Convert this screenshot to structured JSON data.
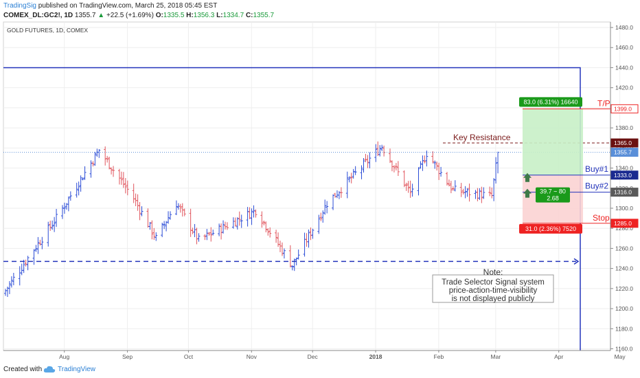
{
  "header": {
    "brand": "TradingSig",
    "published": " published on TradingView.com, March 25, 2018 05:45 EST",
    "symbol": "COMEX_DL:GC2!, 1D",
    "last": "1355.7",
    "change": "+22.5 (+1.69%)",
    "open_label": "O:",
    "open": "1335.5",
    "high_label": "H:",
    "high": "1356.3",
    "low_label": "L:",
    "low": "1334.7",
    "close_label": "C:",
    "close": "1355.7"
  },
  "footer": {
    "created_with": "Created with",
    "brand": "TradingView"
  },
  "colors": {
    "up": "#2a4bd6",
    "down": "#e0545c",
    "blue_line": "#2233bb",
    "target": "#1a9a1a",
    "stop": "#ee2222",
    "resistance": "#7a1a1a",
    "current": "#5a8fd8"
  },
  "chart_data": {
    "type": "ohlc",
    "title": "GOLD FUTURES, 1D, COMEX",
    "y_axis_ticks": [
      "1480.0",
      "1460.0",
      "1440.0",
      "1420.0",
      "1400.0",
      "1380.0",
      "1360.0",
      "1340.0",
      "1320.0",
      "1300.0",
      "1280.0",
      "1260.0",
      "1240.0",
      "1220.0",
      "1200.0",
      "1180.0",
      "1160.0"
    ],
    "ylim": [
      1160,
      1480
    ],
    "x_axis_ticks": [
      "Aug",
      "Sep",
      "Oct",
      "Nov",
      "Dec",
      "2018",
      "Feb",
      "Mar",
      "Apr",
      "May"
    ],
    "key_points": [
      {
        "date": "2017-07-24",
        "close": 1218
      },
      {
        "date": "2017-08-08",
        "close": 1262
      },
      {
        "date": "2017-08-18",
        "close": 1290
      },
      {
        "date": "2017-09-08",
        "close": 1358
      },
      {
        "date": "2017-09-25",
        "close": 1310
      },
      {
        "date": "2017-10-06",
        "close": 1270
      },
      {
        "date": "2017-10-16",
        "close": 1305
      },
      {
        "date": "2017-10-27",
        "close": 1268
      },
      {
        "date": "2017-11-24",
        "close": 1298
      },
      {
        "date": "2017-12-12",
        "close": 1243
      },
      {
        "date": "2017-12-29",
        "close": 1305
      },
      {
        "date": "2018-01-25",
        "close": 1362
      },
      {
        "date": "2018-02-08",
        "close": 1315
      },
      {
        "date": "2018-02-16",
        "close": 1355
      },
      {
        "date": "2018-03-01",
        "close": 1318
      },
      {
        "date": "2018-03-20",
        "close": 1312
      },
      {
        "date": "2018-03-23",
        "close": 1355.7
      }
    ],
    "levels": {
      "top_line": 1440,
      "take_profit": 1399.0,
      "key_resistance": 1365.0,
      "current": 1355.7,
      "buy1": 1333.0,
      "buy2": 1316.0,
      "stop": 1285.0,
      "support_dashed": 1247
    },
    "price_labels": {
      "take_profit": "1399.0",
      "key_resistance": "1365.0",
      "current": "1355.7",
      "buy1": "1333.0",
      "buy2": "1316.0",
      "stop": "1285.0"
    },
    "annotations": {
      "tp": "T/P",
      "key_resistance": "Key Resistance",
      "buy1": "Buy#1",
      "buy2": "Buy#2",
      "stop": "Stop",
      "target_box": "83.0 (6.31%) 16640",
      "stop_box": "31.0 (2.36%) 7520",
      "ratio_line1": "39.7 ~ 80",
      "ratio_line2": "2.68",
      "note_title": "Note:",
      "note_lines": [
        "Trade Selector Signal system",
        "price-action-time-visibility",
        "is not displayed publicly"
      ]
    }
  }
}
